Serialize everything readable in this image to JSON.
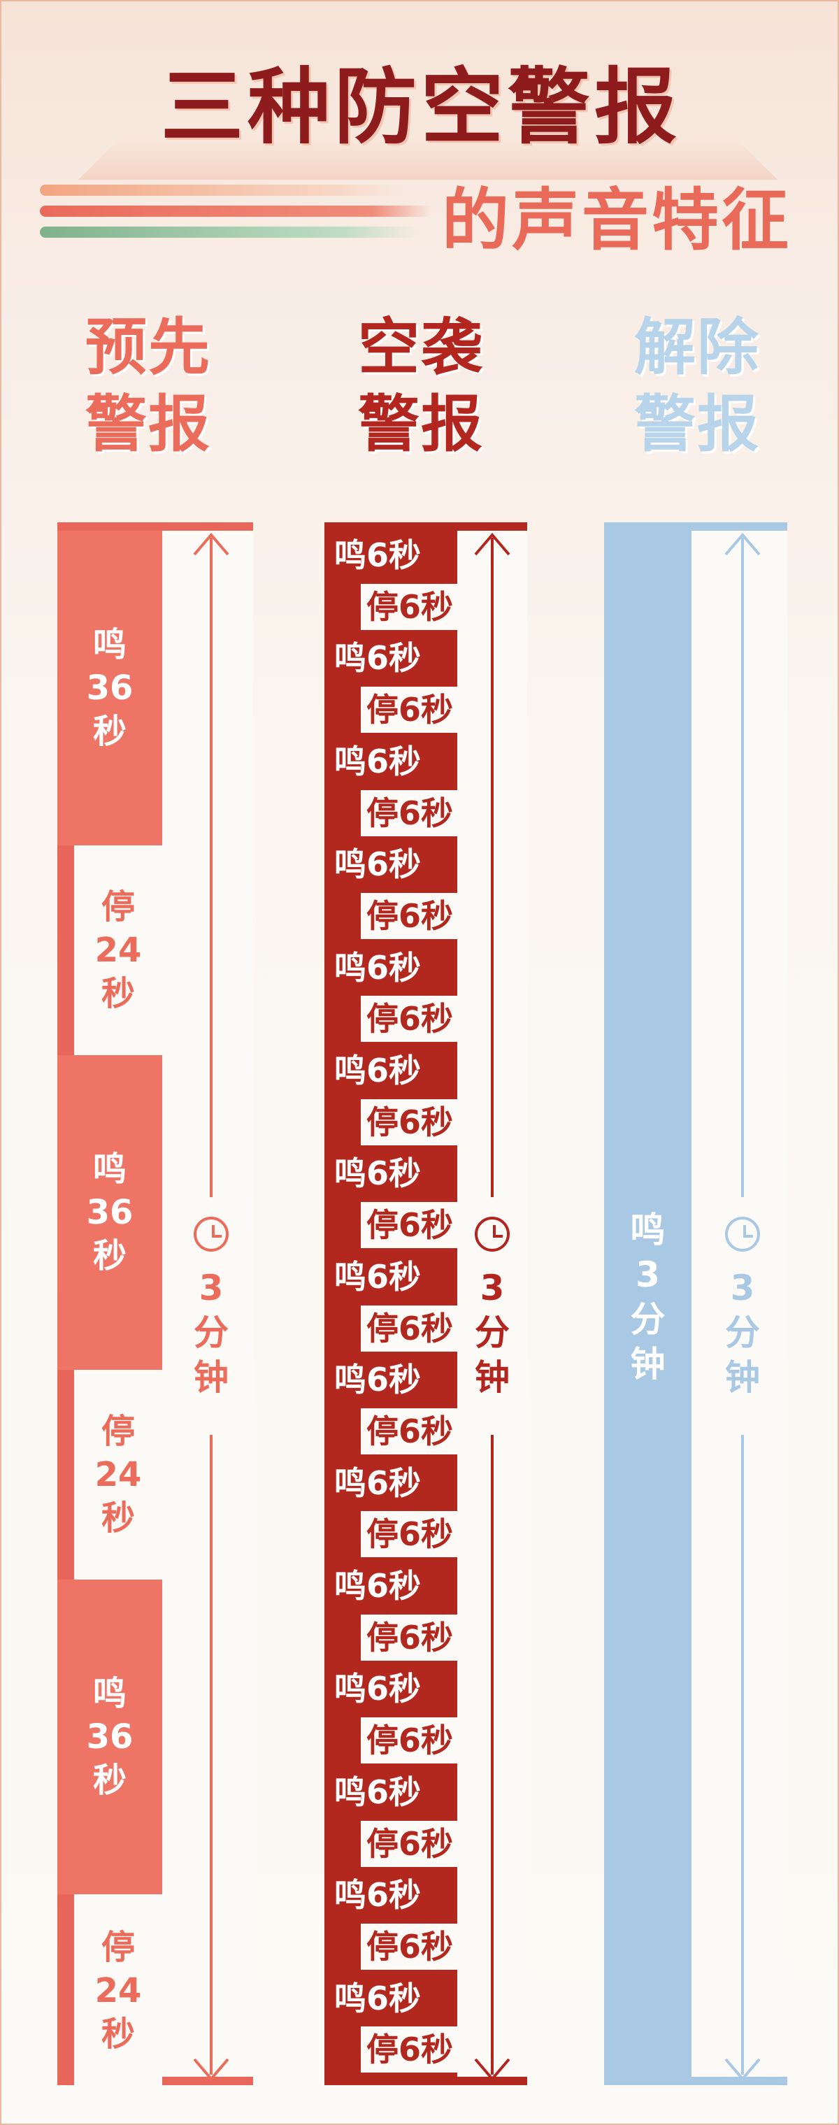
{
  "title": "三种防空警报",
  "subtitle": "的声音特征",
  "alerts": [
    {
      "label": "预先警报",
      "label_line1": "预先",
      "label_line2": "警报",
      "color": "#ec6c5c"
    },
    {
      "label": "空袭警报",
      "label_line1": "空袭",
      "label_line2": "警报",
      "color": "#b2261f"
    },
    {
      "label": "解除警报",
      "label_line1": "解除",
      "label_line2": "警报",
      "color": "#a9c8e4"
    }
  ],
  "warning": {
    "segments": [
      {
        "type": "on",
        "lines": [
          "鸣",
          "36",
          "秒"
        ]
      },
      {
        "type": "off",
        "lines": [
          "停",
          "24",
          "秒"
        ]
      },
      {
        "type": "on",
        "lines": [
          "鸣",
          "36",
          "秒"
        ]
      },
      {
        "type": "off",
        "lines": [
          "停",
          "24",
          "秒"
        ]
      },
      {
        "type": "on",
        "lines": [
          "鸣",
          "36",
          "秒"
        ]
      },
      {
        "type": "off",
        "lines": [
          "停",
          "24",
          "秒"
        ]
      }
    ],
    "duration": [
      "3",
      "分",
      "钟"
    ]
  },
  "air_raid": {
    "on_label": "鸣6秒",
    "off_label": "停6秒",
    "cycles": 15,
    "duration": [
      "3",
      "分",
      "钟"
    ]
  },
  "all_clear": {
    "segment": [
      "鸣",
      "3",
      "分",
      "钟"
    ],
    "duration": [
      "3",
      "分",
      "钟"
    ]
  }
}
